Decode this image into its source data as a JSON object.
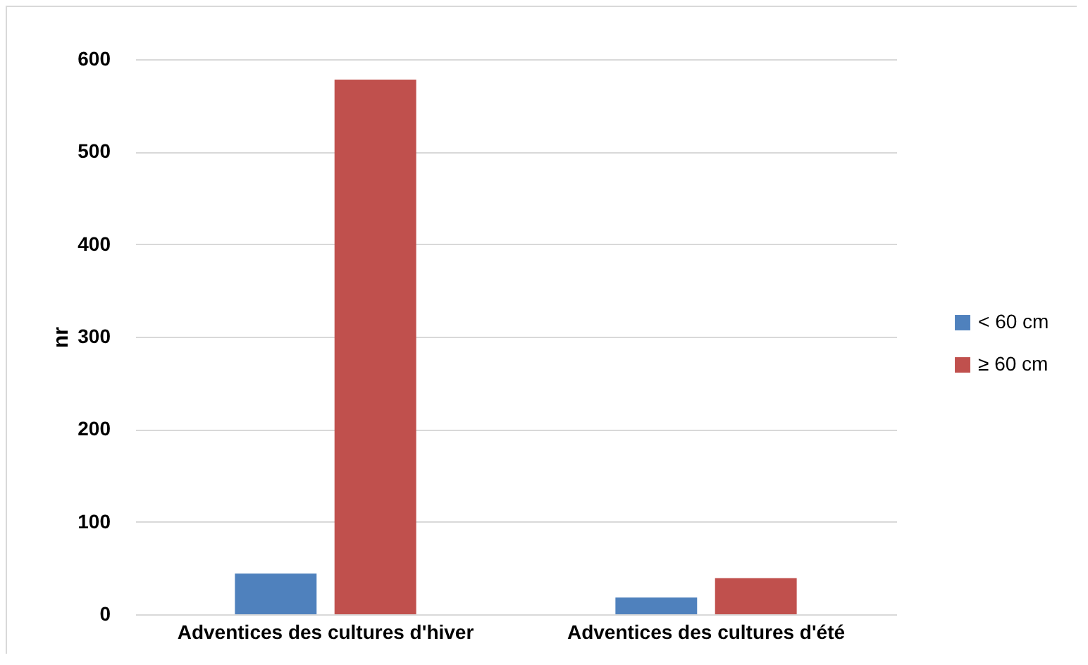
{
  "chart_data": {
    "type": "bar",
    "ylabel": "nr",
    "categories": [
      "Adventices des cultures d'hiver",
      "Adventices des cultures d'été"
    ],
    "series": [
      {
        "name": "< 60 cm",
        "color": "#4f81bd",
        "values": [
          44,
          18
        ]
      },
      {
        "name": "≥ 60 cm",
        "color": "#c0504d",
        "values": [
          578,
          39
        ]
      }
    ],
    "ylim": [
      0,
      600
    ],
    "yticks": [
      0,
      100,
      200,
      300,
      400,
      500,
      600
    ],
    "grid": "y",
    "legend": "right"
  }
}
